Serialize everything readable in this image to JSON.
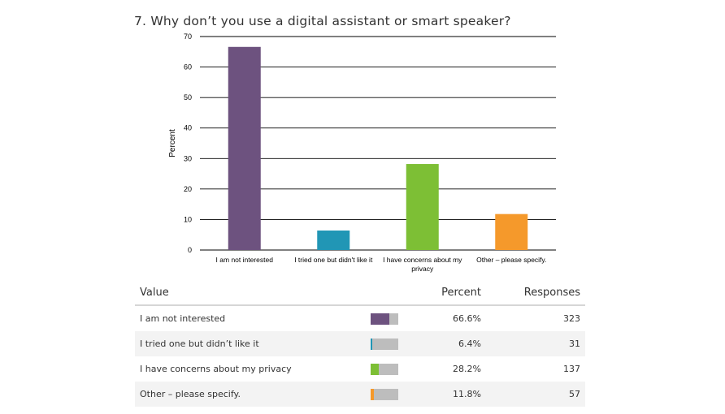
{
  "title": "7. Why don’t you use a digital assistant or smart speaker?",
  "chart_data": {
    "type": "bar",
    "title": "7. Why don’t you use a digital assistant or smart speaker?",
    "xlabel": "",
    "ylabel": "Percent",
    "ylim": [
      0,
      70
    ],
    "yticks": [
      0,
      10,
      20,
      30,
      40,
      50,
      60,
      70
    ],
    "grid": true,
    "categories": [
      [
        "I am not interested"
      ],
      [
        "I tried one but didn't like it"
      ],
      [
        "I have concerns about my",
        "privacy"
      ],
      [
        "Other – please specify."
      ]
    ],
    "values": [
      66.6,
      6.4,
      28.2,
      11.8
    ],
    "colors": [
      "#6d527f",
      "#2196b5",
      "#7dbf35",
      "#f5992b"
    ]
  },
  "table": {
    "headers": {
      "value": "Value",
      "percent": "Percent",
      "responses": "Responses"
    },
    "rows": [
      {
        "value": "I am not interested",
        "percent": "66.6%",
        "responses": "323",
        "fraction": 0.666,
        "color": "#6d527f"
      },
      {
        "value": "I tried one but didn’t like it",
        "percent": "6.4%",
        "responses": "31",
        "fraction": 0.064,
        "color": "#2196b5"
      },
      {
        "value": "I have concerns about my privacy",
        "percent": "28.2%",
        "responses": "137",
        "fraction": 0.282,
        "color": "#7dbf35"
      },
      {
        "value": "Other – please specify.",
        "percent": "11.8%",
        "responses": "57",
        "fraction": 0.118,
        "color": "#f5992b"
      }
    ]
  }
}
